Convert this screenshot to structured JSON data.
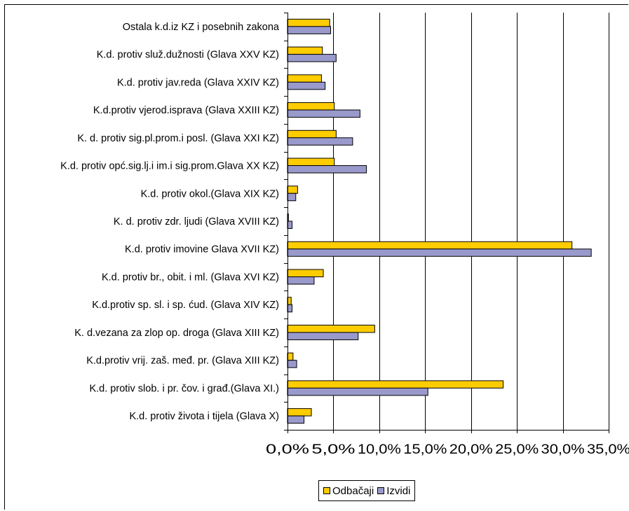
{
  "chart_data": {
    "type": "bar",
    "orientation": "horizontal",
    "categories": [
      "Ostala k.d.iz KZ i posebnih zakona",
      "K.d. protiv služ.dužnosti (Glava XXV KZ)",
      "K.d. protiv jav.reda (Glava XXIV KZ)",
      "K.d.protiv vjerod.isprava (Glava XXIII KZ)",
      "K. d. protiv sig.pl.prom.i posl. (Glava XXI KZ)",
      "K.d. protiv opć.sig.lj.i im.i sig.prom.Glava XX KZ)",
      "K.d. protiv okol.(Glava XIX KZ)",
      "K. d. protiv zdr. ljudi (Glava XVIII KZ)",
      "K.d. protiv imovine Glava XVII KZ)",
      "K.d. protiv br., obit. i ml. (Glava XVI KZ)",
      "K.d.protiv sp. sl. i sp. ćud. (Glava XIV KZ)",
      "K. d.vezana za zlop op. droga (Glava XIII KZ)",
      "K.d.protiv vrij. zaš. međ. pr. (Glava XIII KZ)",
      "K.d. protiv slob. i pr. čov. i građ.(Glava XI.)",
      "K.d. protiv života i tijela (Glava X)"
    ],
    "series": [
      {
        "name": "Odbačaji",
        "color": "#ffcc00",
        "values": [
          4.6,
          3.8,
          3.7,
          5.1,
          5.3,
          5.1,
          1.1,
          0.1,
          31.0,
          3.9,
          0.4,
          9.5,
          0.6,
          23.5,
          2.6
        ]
      },
      {
        "name": "Izvidi",
        "color": "#9999cc",
        "values": [
          4.7,
          5.3,
          4.1,
          7.9,
          7.1,
          8.6,
          0.9,
          0.5,
          33.1,
          2.9,
          0.5,
          7.7,
          1.0,
          15.3,
          1.8
        ]
      }
    ],
    "xlim": [
      0,
      35
    ],
    "x_ticks": [
      "0,0%",
      "5,0%",
      "10,0%",
      "15,0%",
      "20,0%",
      "25,0%",
      "30,0%",
      "35,0%"
    ],
    "x_tick_values": [
      0,
      5,
      10,
      15,
      20,
      25,
      30,
      35
    ],
    "grid": "vertical",
    "legend_position": "bottom",
    "title": "",
    "xlabel": "",
    "ylabel": ""
  }
}
